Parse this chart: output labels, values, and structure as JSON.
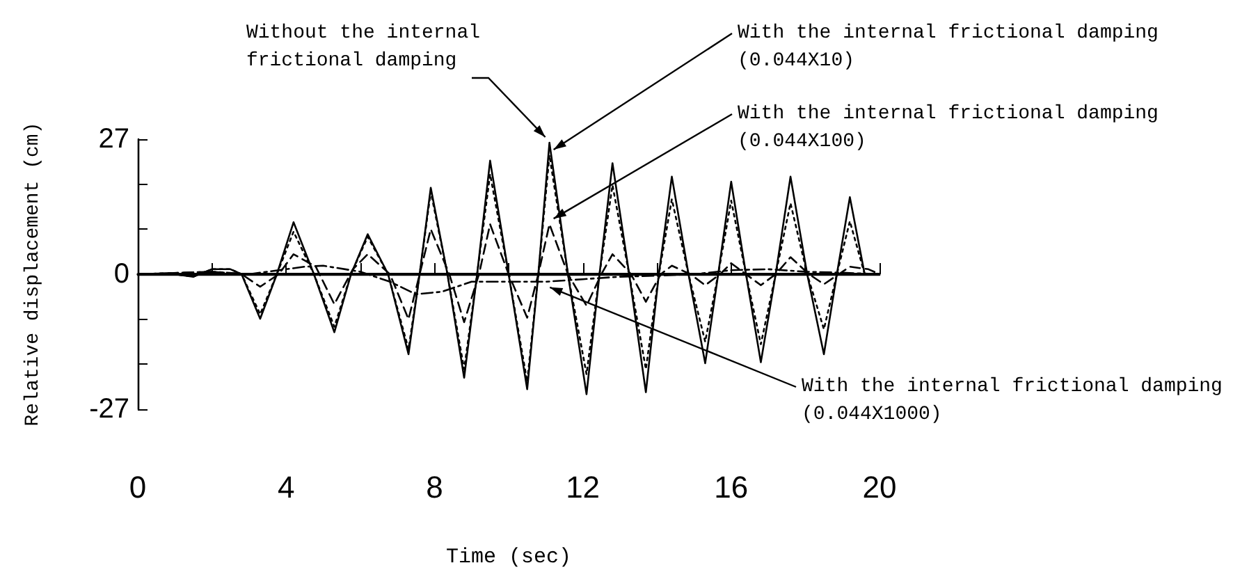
{
  "chart_data": {
    "type": "line",
    "xlabel": "Time (sec)",
    "ylabel": "Relative displacement (cm)",
    "xlim": [
      0,
      20
    ],
    "ylim": [
      -27,
      27
    ],
    "xticks": [
      0,
      {
        "value": 2,
        "label": null
      },
      4,
      {
        "value": 6,
        "label": null
      },
      8,
      {
        "value": 10,
        "label": null
      },
      12,
      {
        "value": 14,
        "label": null
      },
      16,
      {
        "value": 18,
        "label": null
      },
      20
    ],
    "yticks": [
      -27,
      {
        "value": -18,
        "label": null
      },
      {
        "value": -9,
        "label": null
      },
      0,
      {
        "value": 9,
        "label": null
      },
      {
        "value": 18,
        "label": null
      },
      27
    ],
    "grid": false,
    "legend": false,
    "marker": "none",
    "ref_lines": [
      {
        "axis": "y",
        "value": 0,
        "color": "#000000",
        "line_style": "solid"
      }
    ],
    "series": [
      {
        "name": "Without the internal\nfrictional damping",
        "color": "#000000",
        "line_style": "solid",
        "x": [
          0,
          1,
          1.5,
          2,
          2.5,
          2.8,
          3.3,
          3.75,
          4.2,
          4.75,
          5.3,
          5.75,
          6.2,
          6.75,
          7.3,
          7.6,
          7.9,
          8.35,
          8.8,
          9.15,
          9.5,
          10.0,
          10.5,
          10.8,
          11.1,
          11.6,
          12.1,
          12.45,
          12.8,
          13.25,
          13.7,
          14.05,
          14.4,
          14.85,
          15.3,
          15.65,
          16.0,
          16.4,
          16.8,
          17.2,
          17.6,
          18.05,
          18.5,
          18.85,
          19.2,
          19.6,
          20
        ],
        "values": [
          0,
          0,
          -0.5,
          1,
          1,
          0,
          -8.9,
          0,
          10.4,
          0,
          -11.6,
          0,
          8,
          0,
          -16,
          0,
          17.3,
          0,
          -20.7,
          0,
          22.7,
          0,
          -23,
          0,
          26.3,
          0,
          -24,
          0,
          22.2,
          0,
          -23.6,
          0,
          19.5,
          0,
          -17.8,
          0,
          18.5,
          0,
          -17.6,
          0,
          19.5,
          0,
          -16,
          0,
          15.4,
          0,
          0
        ]
      },
      {
        "name": "With the internal frictional damping\n(0.044X10)",
        "color": "#000000",
        "line_style": "dotted",
        "x": [
          0,
          1,
          1.5,
          2,
          2.5,
          2.8,
          3.3,
          3.75,
          4.2,
          4.75,
          5.3,
          5.75,
          6.2,
          6.75,
          7.3,
          7.6,
          7.9,
          8.35,
          8.8,
          9.15,
          9.5,
          10.0,
          10.5,
          10.8,
          11.1,
          11.6,
          12.1,
          12.45,
          12.8,
          13.25,
          13.7,
          14.05,
          14.4,
          14.85,
          15.3,
          15.65,
          16.0,
          16.4,
          16.8,
          17.2,
          17.6,
          18.05,
          18.5,
          18.85,
          19.2,
          19.6,
          20
        ],
        "values": [
          0,
          0,
          -0.5,
          1,
          1,
          0,
          -8,
          0,
          8.5,
          0,
          -10.5,
          0,
          7.5,
          0,
          -15,
          0,
          16.5,
          0,
          -19,
          0,
          20,
          0,
          -21.5,
          0,
          23.8,
          0,
          -20,
          0,
          17.8,
          0,
          -19,
          0,
          15,
          0,
          -13.5,
          0,
          14.7,
          0,
          -14,
          0,
          14.2,
          0,
          -11,
          0,
          10.6,
          0,
          0
        ]
      },
      {
        "name": "With the internal frictional damping\n(0.044X100)",
        "color": "#000000",
        "line_style": "dashed",
        "x": [
          0,
          2,
          2.8,
          3.3,
          3.8,
          4.2,
          4.8,
          5.3,
          5.8,
          6.2,
          6.8,
          7.3,
          7.6,
          7.9,
          8.4,
          8.8,
          9.2,
          9.5,
          10.0,
          10.5,
          10.8,
          11.1,
          11.6,
          12.1,
          12.5,
          12.8,
          13.3,
          13.7,
          14.1,
          14.4,
          14.9,
          15.3,
          15.7,
          16.0,
          16.4,
          16.8,
          17.2,
          17.6,
          18.1,
          18.5,
          18.9,
          19.2,
          19.7,
          20
        ],
        "values": [
          0,
          0.5,
          0,
          -2.5,
          0,
          4,
          1.5,
          -6,
          1,
          4,
          0,
          -9,
          0,
          9,
          0,
          -9.6,
          0,
          10,
          0,
          -8.7,
          0,
          10,
          0,
          -6.3,
          0,
          4,
          0,
          -5.5,
          0,
          1.7,
          0,
          -2.2,
          0,
          2.2,
          0,
          -2.2,
          0,
          3.4,
          0,
          -2,
          0,
          1.5,
          1,
          0
        ]
      },
      {
        "name": "With the internal frictional damping\n(0.044X1000)",
        "color": "#000000",
        "line_style": "dashdot",
        "x": [
          0,
          2,
          3,
          4,
          4.5,
          5,
          6,
          6.8,
          7.5,
          8.2,
          9,
          10,
          11,
          12,
          13,
          14,
          15,
          16,
          17,
          18,
          19,
          20
        ],
        "values": [
          0,
          0.5,
          0,
          1,
          1.5,
          1.7,
          0.5,
          -1.5,
          -4,
          -3.5,
          -1.5,
          -1.5,
          -1.5,
          -1,
          -0.5,
          -0.3,
          0,
          0.8,
          1,
          0.5,
          0.3,
          0
        ]
      }
    ]
  }
}
